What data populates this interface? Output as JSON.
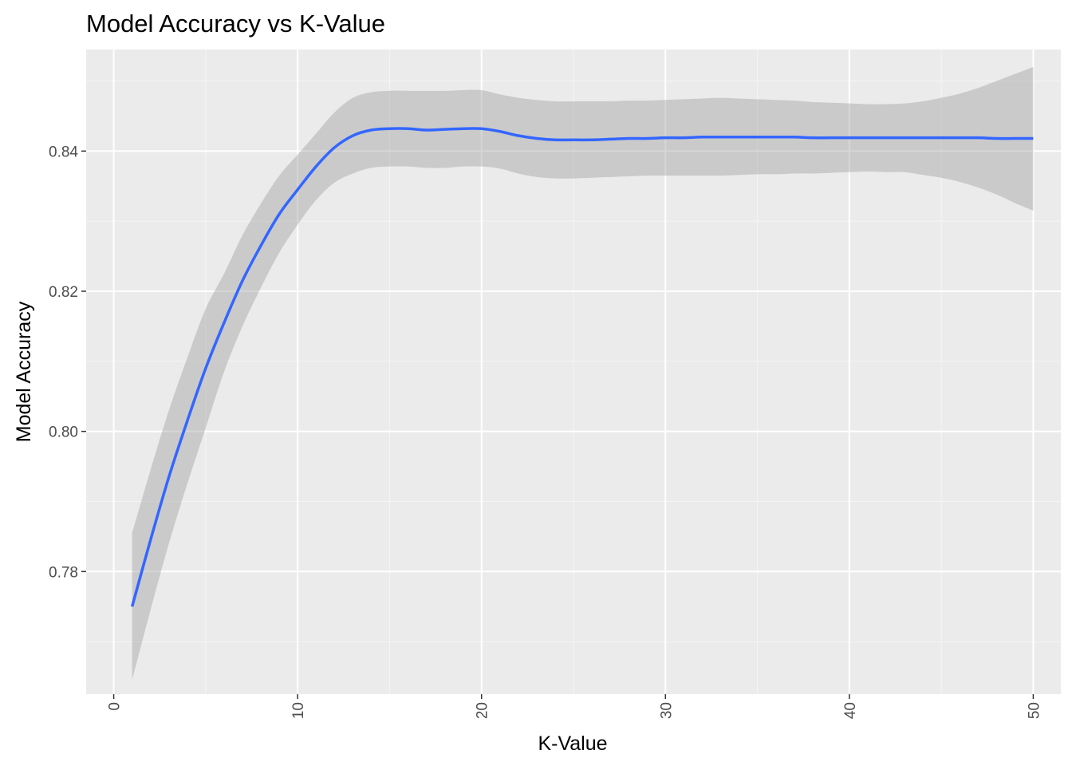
{
  "chart_data": {
    "type": "line",
    "title": "Model Accuracy vs K-Value",
    "xlabel": "K-Value",
    "ylabel": "Model Accuracy",
    "xlim": [
      -1.5,
      51.5
    ],
    "ylim": [
      0.7625,
      0.8545
    ],
    "x_ticks": [
      0,
      10,
      20,
      30,
      40,
      50
    ],
    "x_tick_labels": [
      "0",
      "10",
      "20",
      "30",
      "40",
      "50"
    ],
    "x_minor_ticks": [
      5,
      15,
      25,
      35,
      45
    ],
    "y_ticks": [
      0.78,
      0.8,
      0.82,
      0.84
    ],
    "y_tick_labels": [
      "0.78",
      "0.80",
      "0.82",
      "0.84"
    ],
    "y_minor_ticks": [
      0.77,
      0.79,
      0.81,
      0.83,
      0.85
    ],
    "x_tick_rotation": "vertical",
    "grid": true,
    "legend": "none",
    "series": [
      {
        "kind": "smooth",
        "x": [
          1,
          2,
          3,
          4,
          5,
          6,
          7,
          8,
          9,
          10,
          11,
          12,
          13,
          14,
          15,
          16,
          17,
          18,
          19,
          20,
          21,
          22,
          23,
          24,
          25,
          26,
          27,
          28,
          29,
          30,
          31,
          32,
          33,
          34,
          35,
          36,
          37,
          38,
          39,
          40,
          41,
          42,
          43,
          44,
          45,
          46,
          47,
          48,
          49,
          50
        ],
        "y": [
          0.775,
          0.7845,
          0.7935,
          0.8015,
          0.809,
          0.8155,
          0.8215,
          0.8265,
          0.831,
          0.8345,
          0.8378,
          0.8405,
          0.8422,
          0.843,
          0.8432,
          0.8432,
          0.843,
          0.8431,
          0.8432,
          0.8432,
          0.8428,
          0.8422,
          0.8418,
          0.8416,
          0.8416,
          0.8416,
          0.8417,
          0.8418,
          0.8418,
          0.8419,
          0.8419,
          0.842,
          0.842,
          0.842,
          0.842,
          0.842,
          0.842,
          0.8419,
          0.8419,
          0.8419,
          0.8419,
          0.8419,
          0.8419,
          0.8419,
          0.8419,
          0.8419,
          0.8419,
          0.8418,
          0.8418,
          0.8418
        ],
        "ymin": [
          0.7645,
          0.7745,
          0.784,
          0.7925,
          0.8005,
          0.8085,
          0.815,
          0.8205,
          0.8255,
          0.8295,
          0.833,
          0.8355,
          0.8368,
          0.8376,
          0.8378,
          0.8378,
          0.8376,
          0.8376,
          0.8378,
          0.8378,
          0.8375,
          0.8368,
          0.8363,
          0.8361,
          0.8361,
          0.8362,
          0.8363,
          0.8364,
          0.8365,
          0.8365,
          0.8365,
          0.8365,
          0.8365,
          0.8366,
          0.8367,
          0.8367,
          0.8368,
          0.8368,
          0.8369,
          0.837,
          0.8371,
          0.837,
          0.837,
          0.8366,
          0.8362,
          0.8356,
          0.8348,
          0.8338,
          0.8326,
          0.8315
        ],
        "ymax": [
          0.7855,
          0.7945,
          0.803,
          0.8105,
          0.8175,
          0.8225,
          0.828,
          0.8325,
          0.8365,
          0.8395,
          0.8425,
          0.8455,
          0.8476,
          0.8484,
          0.8486,
          0.8486,
          0.8486,
          0.8486,
          0.8487,
          0.8487,
          0.8481,
          0.8476,
          0.8473,
          0.8471,
          0.8471,
          0.8471,
          0.8471,
          0.8472,
          0.8472,
          0.8473,
          0.8474,
          0.8475,
          0.8476,
          0.8475,
          0.8474,
          0.8473,
          0.8472,
          0.847,
          0.8469,
          0.8468,
          0.8467,
          0.8467,
          0.8468,
          0.8471,
          0.8476,
          0.8482,
          0.849,
          0.85,
          0.851,
          0.852
        ]
      }
    ],
    "colors": {
      "panel_background": "#ebebeb",
      "grid_major": "#ffffff",
      "grid_minor": "#f5f5f5",
      "line": "#3366ff",
      "ribbon": "#999999",
      "tick_mark": "#333333"
    }
  }
}
